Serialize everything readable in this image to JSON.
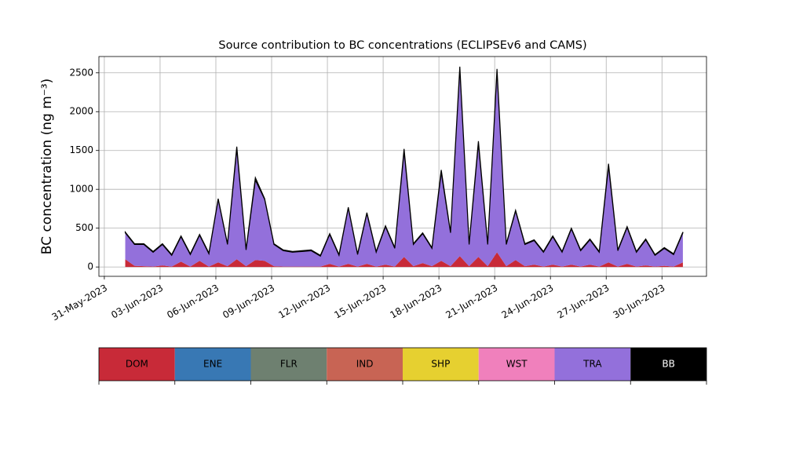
{
  "chart_data": {
    "type": "stacked_area",
    "title": "Source contribution to BC concentrations (ECLIPSEv6 and CAMS)",
    "y_label": "BC concentration (ng m⁻³)",
    "x": [
      "2023-06-01T03:00",
      "2023-06-01T15:00",
      "2023-06-02T03:00",
      "2023-06-02T15:00",
      "2023-06-03T03:00",
      "2023-06-03T15:00",
      "2023-06-04T03:00",
      "2023-06-04T15:00",
      "2023-06-05T03:00",
      "2023-06-05T15:00",
      "2023-06-06T03:00",
      "2023-06-06T15:00",
      "2023-06-07T03:00",
      "2023-06-07T15:00",
      "2023-06-08T03:00",
      "2023-06-08T15:00",
      "2023-06-09T03:00",
      "2023-06-09T15:00",
      "2023-06-10T03:00",
      "2023-06-10T15:00",
      "2023-06-11T03:00",
      "2023-06-11T15:00",
      "2023-06-12T03:00",
      "2023-06-12T15:00",
      "2023-06-13T03:00",
      "2023-06-13T15:00",
      "2023-06-14T03:00",
      "2023-06-14T15:00",
      "2023-06-15T03:00",
      "2023-06-15T15:00",
      "2023-06-16T03:00",
      "2023-06-16T15:00",
      "2023-06-17T03:00",
      "2023-06-17T15:00",
      "2023-06-18T03:00",
      "2023-06-18T15:00",
      "2023-06-19T03:00",
      "2023-06-19T15:00",
      "2023-06-20T03:00",
      "2023-06-20T15:00",
      "2023-06-21T03:00",
      "2023-06-21T15:00",
      "2023-06-22T03:00",
      "2023-06-22T15:00",
      "2023-06-23T03:00",
      "2023-06-23T15:00",
      "2023-06-24T03:00",
      "2023-06-24T15:00",
      "2023-06-25T03:00",
      "2023-06-25T15:00",
      "2023-06-26T03:00",
      "2023-06-26T15:00",
      "2023-06-27T03:00",
      "2023-06-27T15:00",
      "2023-06-28T03:00",
      "2023-06-28T15:00",
      "2023-06-29T03:00",
      "2023-06-29T15:00",
      "2023-06-30T03:00",
      "2023-06-30T15:00",
      "2023-07-01T03:00"
    ],
    "series": [
      {
        "name": "DOM",
        "color": "#c82a38",
        "values": [
          100,
          15,
          10,
          5,
          20,
          5,
          70,
          5,
          80,
          5,
          60,
          10,
          100,
          10,
          90,
          80,
          10,
          5,
          5,
          5,
          5,
          5,
          40,
          5,
          40,
          5,
          40,
          5,
          30,
          5,
          130,
          10,
          50,
          10,
          80,
          10,
          140,
          10,
          130,
          10,
          190,
          10,
          90,
          10,
          30,
          5,
          30,
          5,
          30,
          5,
          30,
          5,
          60,
          5,
          40,
          5,
          20,
          5,
          15,
          5,
          60
        ]
      },
      {
        "name": "ENE",
        "color": "#3878b4",
        "values": [
          0,
          0,
          0,
          0,
          0,
          0,
          0,
          0,
          0,
          0,
          0,
          0,
          0,
          0,
          0,
          0,
          0,
          0,
          0,
          0,
          0,
          0,
          0,
          0,
          0,
          0,
          0,
          0,
          0,
          0,
          0,
          0,
          0,
          0,
          0,
          0,
          0,
          0,
          0,
          0,
          0,
          0,
          0,
          0,
          0,
          0,
          0,
          0,
          0,
          0,
          0,
          0,
          0,
          0,
          0,
          0,
          0,
          0,
          0,
          0,
          0
        ]
      },
      {
        "name": "FLR",
        "color": "#6e8070",
        "values": [
          0,
          0,
          0,
          0,
          0,
          0,
          0,
          0,
          0,
          0,
          0,
          0,
          0,
          0,
          0,
          0,
          0,
          0,
          0,
          0,
          0,
          0,
          0,
          0,
          0,
          0,
          0,
          0,
          0,
          0,
          0,
          0,
          0,
          0,
          0,
          0,
          0,
          0,
          0,
          0,
          0,
          0,
          0,
          0,
          0,
          0,
          0,
          0,
          0,
          0,
          0,
          0,
          0,
          0,
          0,
          0,
          0,
          0,
          0,
          0,
          0
        ]
      },
      {
        "name": "IND",
        "color": "#c86454",
        "values": [
          0,
          0,
          0,
          0,
          0,
          0,
          0,
          0,
          0,
          0,
          0,
          0,
          0,
          0,
          0,
          0,
          0,
          0,
          0,
          0,
          0,
          0,
          0,
          0,
          0,
          0,
          0,
          0,
          0,
          0,
          0,
          0,
          0,
          0,
          0,
          0,
          0,
          0,
          0,
          0,
          0,
          0,
          0,
          0,
          0,
          0,
          0,
          0,
          0,
          0,
          0,
          0,
          0,
          0,
          0,
          0,
          0,
          0,
          0,
          0,
          0
        ]
      },
      {
        "name": "SHP",
        "color": "#e6d030",
        "values": [
          0,
          0,
          0,
          0,
          0,
          0,
          0,
          0,
          0,
          0,
          0,
          0,
          0,
          0,
          0,
          0,
          0,
          0,
          0,
          0,
          0,
          0,
          0,
          0,
          0,
          0,
          0,
          0,
          0,
          0,
          0,
          0,
          0,
          0,
          0,
          0,
          0,
          0,
          0,
          0,
          0,
          0,
          0,
          0,
          0,
          0,
          0,
          0,
          0,
          0,
          0,
          0,
          0,
          0,
          0,
          0,
          0,
          0,
          0,
          0,
          0
        ]
      },
      {
        "name": "WST",
        "color": "#f080bc",
        "values": [
          0,
          0,
          0,
          0,
          0,
          0,
          0,
          0,
          0,
          0,
          0,
          0,
          0,
          0,
          0,
          0,
          0,
          0,
          0,
          0,
          0,
          0,
          0,
          0,
          0,
          0,
          0,
          0,
          0,
          0,
          0,
          0,
          0,
          0,
          0,
          0,
          0,
          0,
          0,
          0,
          0,
          0,
          0,
          0,
          0,
          0,
          0,
          0,
          0,
          0,
          0,
          0,
          0,
          0,
          0,
          0,
          0,
          0,
          0,
          0,
          0
        ]
      },
      {
        "name": "TRA",
        "color": "#9370db",
        "values": [
          340,
          275,
          280,
          185,
          270,
          145,
          320,
          155,
          330,
          165,
          810,
          280,
          1420,
          210,
          1030,
          790,
          280,
          205,
          185,
          195,
          205,
          135,
          380,
          145,
          720,
          155,
          650,
          185,
          490,
          235,
          1360,
          280,
          380,
          230,
          1140,
          430,
          2410,
          280,
          1460,
          280,
          2330,
          280,
          630,
          280,
          310,
          185,
          360,
          185,
          460,
          205,
          320,
          185,
          1240,
          205,
          470,
          185,
          330,
          145,
          225,
          155,
          380
        ]
      },
      {
        "name": "BB",
        "color": "#000000",
        "values": [
          10,
          10,
          10,
          10,
          10,
          10,
          10,
          10,
          10,
          10,
          10,
          10,
          30,
          10,
          30,
          10,
          10,
          10,
          10,
          10,
          10,
          10,
          10,
          10,
          10,
          10,
          10,
          10,
          10,
          10,
          30,
          10,
          10,
          10,
          30,
          10,
          30,
          10,
          30,
          10,
          30,
          10,
          10,
          10,
          10,
          10,
          10,
          10,
          10,
          10,
          10,
          10,
          30,
          10,
          10,
          10,
          10,
          10,
          10,
          10,
          10
        ]
      }
    ],
    "xlim": [
      "2023-05-30T17:00",
      "2023-07-02T09:30"
    ],
    "xticks": [
      {
        "value": "2023-05-31T00:00",
        "label": "31-May-2023"
      },
      {
        "value": "2023-06-03T00:00",
        "label": "03-Jun-2023"
      },
      {
        "value": "2023-06-06T00:00",
        "label": "06-Jun-2023"
      },
      {
        "value": "2023-06-09T00:00",
        "label": "09-Jun-2023"
      },
      {
        "value": "2023-06-12T00:00",
        "label": "12-Jun-2023"
      },
      {
        "value": "2023-06-15T00:00",
        "label": "15-Jun-2023"
      },
      {
        "value": "2023-06-18T00:00",
        "label": "18-Jun-2023"
      },
      {
        "value": "2023-06-21T00:00",
        "label": "21-Jun-2023"
      },
      {
        "value": "2023-06-24T00:00",
        "label": "24-Jun-2023"
      },
      {
        "value": "2023-06-27T00:00",
        "label": "27-Jun-2023"
      },
      {
        "value": "2023-06-30T00:00",
        "label": "30-Jun-2023"
      }
    ],
    "ylim": [
      -120,
      2710
    ],
    "yticks": [
      0,
      500,
      1000,
      1500,
      2000,
      2500
    ],
    "grid": true
  }
}
